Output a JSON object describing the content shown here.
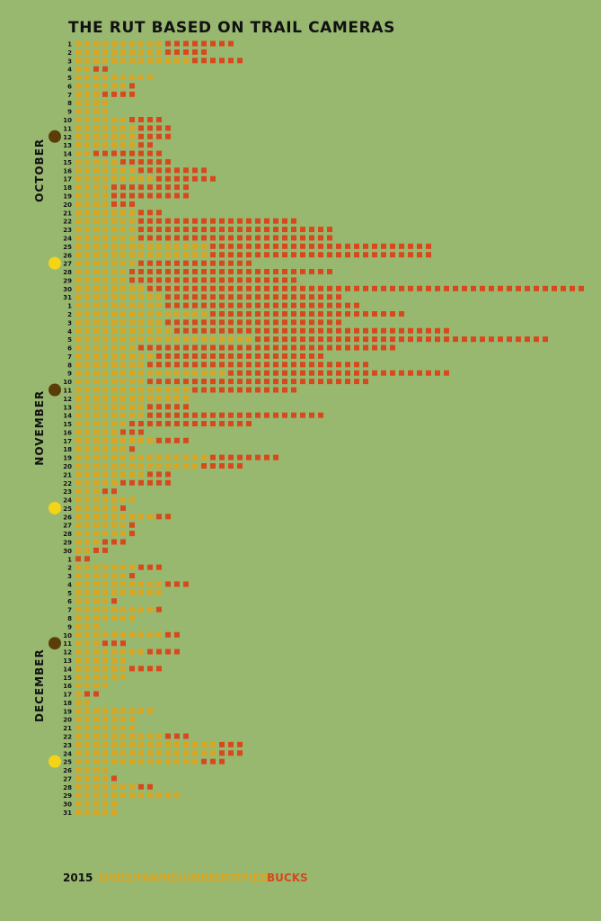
{
  "chart_data": {
    "type": "bar",
    "stacked": true,
    "orientation": "horizontal",
    "unit_style": "one square per sighting",
    "title": "THE RUT BASED ON TRAIL CAMERAS",
    "year": "2015",
    "colors": {
      "does": "#d9a521",
      "bucks": "#d8481c",
      "new_moon": "#5a3d09",
      "full_moon": "#f5d416",
      "text": "#111111"
    },
    "legend": [
      {
        "label": "DOES/FAWNS/UNIDENTIFIED",
        "series": "does",
        "color": "#d9a521"
      },
      {
        "label": "BUCKS",
        "series": "bucks",
        "color": "#d8481c"
      }
    ],
    "months": [
      {
        "name": "OCTOBER",
        "does": [
          10,
          10,
          13,
          2,
          9,
          6,
          3,
          4,
          4,
          6,
          7,
          7,
          7,
          2,
          5,
          7,
          9,
          4,
          4,
          4,
          7,
          7,
          7,
          7,
          15,
          15,
          7,
          6,
          6,
          8,
          10
        ],
        "bucks": [
          8,
          5,
          6,
          2,
          0,
          1,
          4,
          0,
          0,
          4,
          4,
          4,
          2,
          8,
          6,
          8,
          7,
          9,
          9,
          3,
          3,
          18,
          22,
          22,
          25,
          25,
          13,
          23,
          19,
          49,
          20
        ],
        "moons": [
          {
            "day": 12,
            "phase": "new"
          },
          {
            "day": 27,
            "phase": "full"
          }
        ]
      },
      {
        "name": "NOVEMBER",
        "does": [
          10,
          15,
          10,
          11,
          20,
          7,
          9,
          8,
          17,
          8,
          13,
          13,
          8,
          8,
          6,
          5,
          9,
          6,
          15,
          14,
          8,
          5,
          3,
          7,
          5,
          9,
          6,
          6,
          3,
          2
        ],
        "bucks": [
          22,
          22,
          20,
          31,
          33,
          29,
          19,
          25,
          25,
          25,
          12,
          0,
          5,
          20,
          14,
          3,
          4,
          1,
          8,
          5,
          3,
          6,
          2,
          0,
          1,
          2,
          1,
          1,
          3,
          2
        ],
        "moons": [
          {
            "day": 11,
            "phase": "new"
          },
          {
            "day": 25,
            "phase": "full"
          }
        ]
      },
      {
        "name": "DECEMBER",
        "does": [
          0,
          7,
          6,
          10,
          10,
          4,
          9,
          7,
          3,
          10,
          3,
          8,
          6,
          6,
          6,
          4,
          1,
          2,
          9,
          7,
          7,
          10,
          16,
          16,
          14,
          4,
          4,
          7,
          12,
          5,
          5
        ],
        "bucks": [
          2,
          3,
          1,
          3,
          0,
          1,
          1,
          0,
          0,
          2,
          3,
          4,
          0,
          4,
          0,
          0,
          2,
          0,
          0,
          0,
          0,
          3,
          3,
          3,
          3,
          0,
          1,
          2,
          0,
          0,
          0
        ],
        "moons": [
          {
            "day": 11,
            "phase": "new"
          },
          {
            "day": 25,
            "phase": "full"
          }
        ]
      }
    ]
  }
}
